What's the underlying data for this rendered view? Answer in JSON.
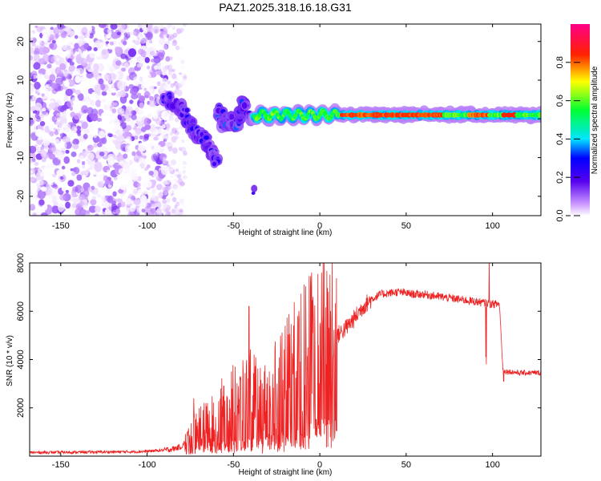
{
  "title": "PAZ1.2025.318.16.18.G31",
  "colors": {
    "snr_line": "#ee2222",
    "background": "#ffffff",
    "axes": "#000000"
  },
  "chart_data": [
    {
      "type": "heatmap",
      "title": "PAZ1.2025.318.16.18.G31",
      "xlabel": "Height of straight line (km)",
      "ylabel": "Frequency (Hz)",
      "xlim": [
        -168,
        128
      ],
      "ylim": [
        -25,
        24.5
      ],
      "xticks": [
        -150,
        -100,
        -50,
        0,
        50,
        100
      ],
      "yticks": [
        -20,
        -10,
        0,
        10,
        20
      ],
      "xtick_labels": [
        "-150",
        "-100",
        "-50",
        "0",
        "50",
        "100"
      ],
      "ytick_labels": [
        "-20",
        "-10",
        "0",
        "10",
        "20"
      ],
      "colorbar": {
        "label": "Normalized spectral amplitude",
        "range": [
          0,
          1
        ],
        "ticks": [
          0.0,
          0.2,
          0.4,
          0.6,
          0.8
        ],
        "tick_labels": [
          "0.0",
          "0.2",
          "0.4",
          "0.6",
          "0.8"
        ],
        "colormap": "rainbow (white → purple → blue → cyan → green → yellow → red → magenta)"
      },
      "features": [
        {
          "description": "scattered noise",
          "x_range": [
            -168,
            -88
          ],
          "y_range": [
            -25,
            24.5
          ],
          "amplitude": [
            0.0,
            0.15
          ]
        },
        {
          "description": "descending signal branch",
          "points": [
            [
              -90,
              6
            ],
            [
              -80,
              3
            ],
            [
              -75,
              -2
            ],
            [
              -70,
              -4
            ],
            [
              -65,
              -6
            ],
            [
              -62,
              -9
            ],
            [
              -60,
              -11
            ]
          ],
          "amplitude": [
            0.15,
            0.3
          ]
        },
        {
          "description": "multipath clusters",
          "points": [
            [
              -58,
              2
            ],
            [
              -55,
              -2
            ],
            [
              -50,
              0
            ],
            [
              -48,
              -3
            ],
            [
              -45,
              5
            ],
            [
              -40,
              0
            ]
          ],
          "amplitude": [
            0.15,
            0.35
          ]
        },
        {
          "description": "main carrier line near 0 Hz",
          "x_range": [
            -38,
            128
          ],
          "y_center": 1,
          "amplitude": [
            0.4,
            0.9
          ]
        }
      ]
    },
    {
      "type": "line",
      "xlabel": "Height of straight line (km)",
      "ylabel": "SNR (10 * v/v)",
      "xlim": [
        -168,
        128
      ],
      "ylim": [
        0,
        8000
      ],
      "xticks": [
        -150,
        -100,
        -50,
        0,
        50,
        100
      ],
      "yticks": [
        2000,
        4000,
        6000,
        8000
      ],
      "xtick_labels": [
        "-150",
        "-100",
        "-50",
        "0",
        "50",
        "100"
      ],
      "ytick_labels": [
        "2000",
        "4000",
        "6000",
        "8000"
      ],
      "series": [
        {
          "name": "SNR",
          "x": [
            -168,
            -150,
            -130,
            -110,
            -100,
            -90,
            -85,
            -80,
            -75,
            -70,
            -65,
            -60,
            -55,
            -50,
            -45,
            -40,
            -35,
            -30,
            -25,
            -20,
            -15,
            -10,
            -5,
            0,
            5,
            10,
            15,
            20,
            25,
            30,
            35,
            40,
            45,
            50,
            55,
            60,
            65,
            70,
            75,
            80,
            85,
            90,
            95,
            100,
            104,
            106,
            108,
            110,
            115,
            120,
            128
          ],
          "values": [
            150,
            160,
            170,
            180,
            200,
            250,
            300,
            400,
            800,
            1300,
            1200,
            1500,
            1900,
            2200,
            2100,
            2600,
            2000,
            2200,
            3000,
            3200,
            3500,
            3800,
            4200,
            4800,
            4300,
            5000,
            5300,
            5700,
            6200,
            6500,
            6700,
            6750,
            6800,
            6750,
            6700,
            6700,
            6650,
            6600,
            6550,
            6500,
            6450,
            6400,
            6350,
            6300,
            6300,
            3600,
            3500,
            3500,
            3450,
            3450,
            3450
          ],
          "spike_peaks": [
            {
              "x": -73,
              "y": 2400
            },
            {
              "x": -65,
              "y": 2200
            },
            {
              "x": -55,
              "y": 2300
            },
            {
              "x": -49,
              "y": 3700
            },
            {
              "x": -41,
              "y": 6200
            },
            {
              "x": -35,
              "y": 2900
            },
            {
              "x": -26,
              "y": 4400
            },
            {
              "x": -20,
              "y": 5400
            },
            {
              "x": -12,
              "y": 5700
            },
            {
              "x": -4,
              "y": 6600
            },
            {
              "x": 1,
              "y": 7600
            },
            {
              "x": 5,
              "y": 6800
            },
            {
              "x": 96,
              "y": 4100
            },
            {
              "x": 98,
              "y": 8200
            }
          ],
          "spike_dips": [
            {
              "x": 1,
              "y": 1500
            },
            {
              "x": 96,
              "y": 3800
            },
            {
              "x": 106,
              "y": 3100
            }
          ]
        }
      ]
    }
  ]
}
